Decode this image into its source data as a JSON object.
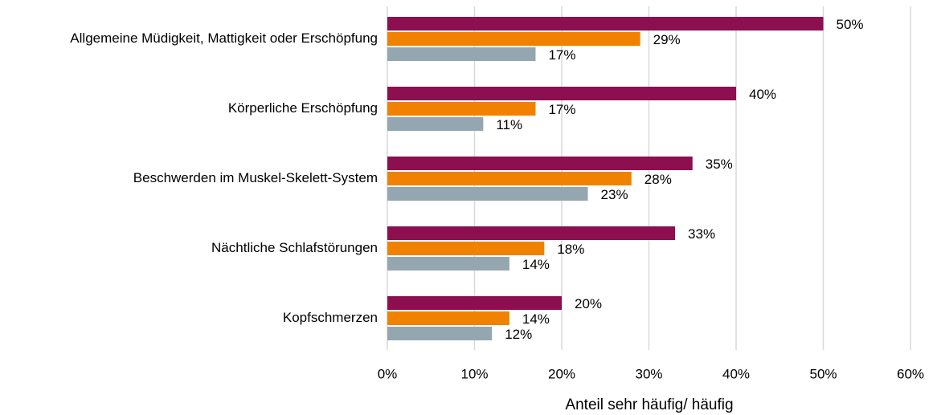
{
  "chart_data": {
    "type": "bar",
    "orientation": "horizontal",
    "xlabel": "Anteil sehr häufig/ häufig",
    "categories": [
      "Allgemeine Müdigkeit, Mattigkeit oder Erschöpfung",
      "Körperliche Erschöpfung",
      "Beschwerden im Muskel-Skelett-System",
      "Nächtliche Schlafstörungen",
      "Kopfschmerzen"
    ],
    "series": [
      {
        "color": "#8c0f50",
        "values": [
          50,
          40,
          35,
          33,
          20
        ],
        "value_labels": [
          "50%",
          "40%",
          "35%",
          "33%",
          "20%"
        ]
      },
      {
        "color": "#f08200",
        "values": [
          29,
          17,
          28,
          18,
          14
        ],
        "value_labels": [
          "29%",
          "17%",
          "28%",
          "18%",
          "14%"
        ]
      },
      {
        "color": "#94a7b0",
        "values": [
          17,
          11,
          23,
          14,
          12
        ],
        "value_labels": [
          "17%",
          "11%",
          "23%",
          "14%",
          "12%"
        ]
      }
    ],
    "xlim": [
      0,
      60
    ],
    "xticks": [
      {
        "value": 0,
        "label": "0%"
      },
      {
        "value": 10,
        "label": "10%"
      },
      {
        "value": 20,
        "label": "20%"
      },
      {
        "value": 30,
        "label": "30%"
      },
      {
        "value": 40,
        "label": "40%"
      },
      {
        "value": 50,
        "label": "50%"
      },
      {
        "value": 60,
        "label": "60%"
      }
    ],
    "grid": true
  }
}
